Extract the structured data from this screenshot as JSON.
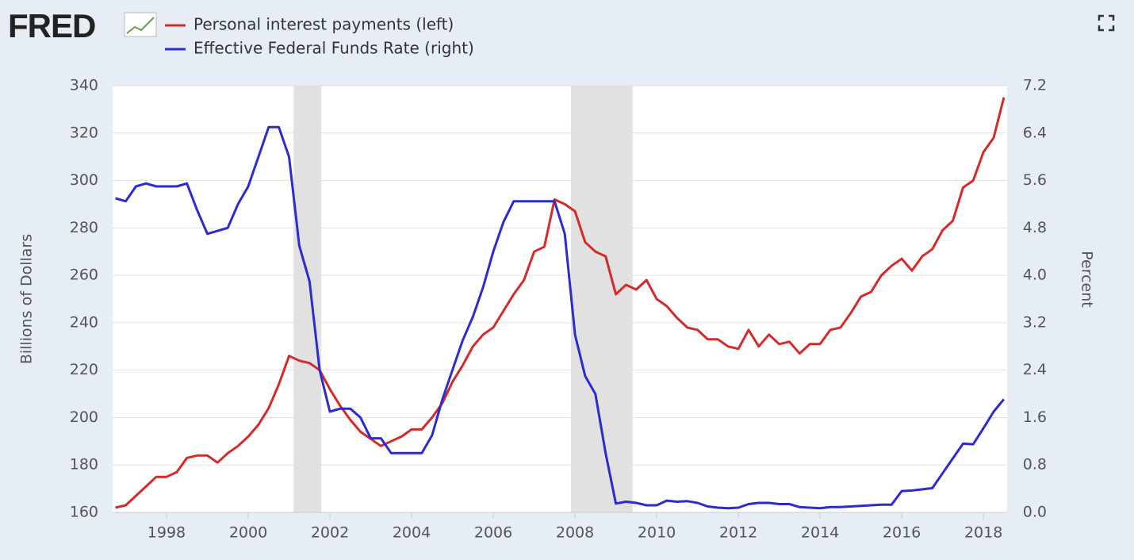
{
  "logo": "FRED",
  "chart_data": {
    "type": "line",
    "y_label": "Billions of Dollars",
    "y2_label": "Percent",
    "legend": "top-left",
    "grid": true,
    "xlim": [
      1996.68,
      2018.58
    ],
    "xticks": [
      1998,
      2000,
      2002,
      2004,
      2006,
      2008,
      2010,
      2012,
      2014,
      2016,
      2018
    ],
    "ylim": [
      160,
      340
    ],
    "yticks": [
      160,
      180,
      200,
      220,
      240,
      260,
      280,
      300,
      320,
      340
    ],
    "y2lim": [
      0,
      7.2
    ],
    "y2ticks": [
      {
        "value": 0,
        "label": "0.0"
      },
      0.8,
      1.6,
      2.4,
      3.2,
      {
        "value": 4,
        "label": "4.0"
      },
      4.8,
      5.6,
      6.4,
      7.2
    ],
    "recessions": [
      {
        "start": 2001.11,
        "end": 2001.79
      },
      {
        "start": 2007.9,
        "end": 2009.41
      }
    ],
    "recession_color": "#e1e1e1",
    "x": [
      1996.75,
      1997,
      1997.25,
      1997.5,
      1997.75,
      1998,
      1998.25,
      1998.5,
      1998.75,
      1999,
      1999.25,
      1999.5,
      1999.75,
      2000,
      2000.25,
      2000.5,
      2000.75,
      2001,
      2001.25,
      2001.5,
      2001.75,
      2002,
      2002.25,
      2002.5,
      2002.75,
      2003,
      2003.25,
      2003.5,
      2003.75,
      2004,
      2004.25,
      2004.5,
      2004.75,
      2005,
      2005.25,
      2005.5,
      2005.75,
      2006,
      2006.25,
      2006.5,
      2006.75,
      2007,
      2007.25,
      2007.5,
      2007.75,
      2008,
      2008.25,
      2008.5,
      2008.75,
      2009,
      2009.25,
      2009.5,
      2009.75,
      2010,
      2010.25,
      2010.5,
      2010.75,
      2011,
      2011.25,
      2011.5,
      2011.75,
      2012,
      2012.25,
      2012.5,
      2012.75,
      2013,
      2013.25,
      2013.5,
      2013.75,
      2014,
      2014.25,
      2014.5,
      2014.75,
      2015,
      2015.25,
      2015.5,
      2015.75,
      2016,
      2016.25,
      2016.5,
      2016.75,
      2017,
      2017.25,
      2017.5,
      2017.75,
      2018,
      2018.25,
      2018.5
    ],
    "series": [
      {
        "name": "Personal interest payments (left)",
        "color": "#d42a2a",
        "axis": "y",
        "values": [
          162,
          163,
          167,
          171,
          175,
          175,
          177,
          183,
          184,
          184,
          181,
          185,
          188,
          192,
          197,
          204,
          214,
          226,
          224,
          223,
          220,
          212,
          205,
          199,
          194,
          191,
          188,
          190,
          192,
          195,
          195,
          200,
          206,
          215,
          222,
          230,
          235,
          238,
          245,
          252,
          258,
          270,
          272,
          292,
          290,
          287,
          274,
          270,
          268,
          252,
          256,
          254,
          258,
          250,
          247,
          242,
          238,
          237,
          233,
          233,
          230,
          229,
          237,
          230,
          235,
          231,
          232,
          227,
          231,
          231,
          237,
          238,
          244,
          251,
          253,
          260,
          264,
          267,
          262,
          268,
          271,
          279,
          283,
          297,
          300,
          312,
          318,
          335
        ]
      },
      {
        "name": "Effective Federal Funds Rate (right)",
        "color": "#2b2bd0",
        "axis": "y2",
        "values": [
          5.3,
          5.25,
          5.5,
          5.55,
          5.5,
          5.5,
          5.5,
          5.55,
          5.1,
          4.7,
          4.75,
          4.8,
          5.2,
          5.5,
          6.0,
          6.5,
          6.5,
          6.0,
          4.5,
          3.9,
          2.4,
          1.7,
          1.75,
          1.75,
          1.6,
          1.25,
          1.25,
          1.0,
          1.0,
          1.0,
          1.0,
          1.3,
          1.9,
          2.4,
          2.9,
          3.3,
          3.8,
          4.4,
          4.9,
          5.25,
          5.25,
          5.25,
          5.25,
          5.25,
          4.7,
          3.0,
          2.3,
          2.0,
          1.0,
          0.15,
          0.18,
          0.16,
          0.12,
          0.12,
          0.2,
          0.18,
          0.19,
          0.16,
          0.1,
          0.08,
          0.07,
          0.08,
          0.14,
          0.16,
          0.16,
          0.14,
          0.14,
          0.09,
          0.08,
          0.07,
          0.09,
          0.09,
          0.1,
          0.11,
          0.12,
          0.13,
          0.13,
          0.36,
          0.37,
          0.39,
          0.41,
          0.66,
          0.91,
          1.16,
          1.15,
          1.42,
          1.7,
          1.91
        ]
      }
    ]
  }
}
